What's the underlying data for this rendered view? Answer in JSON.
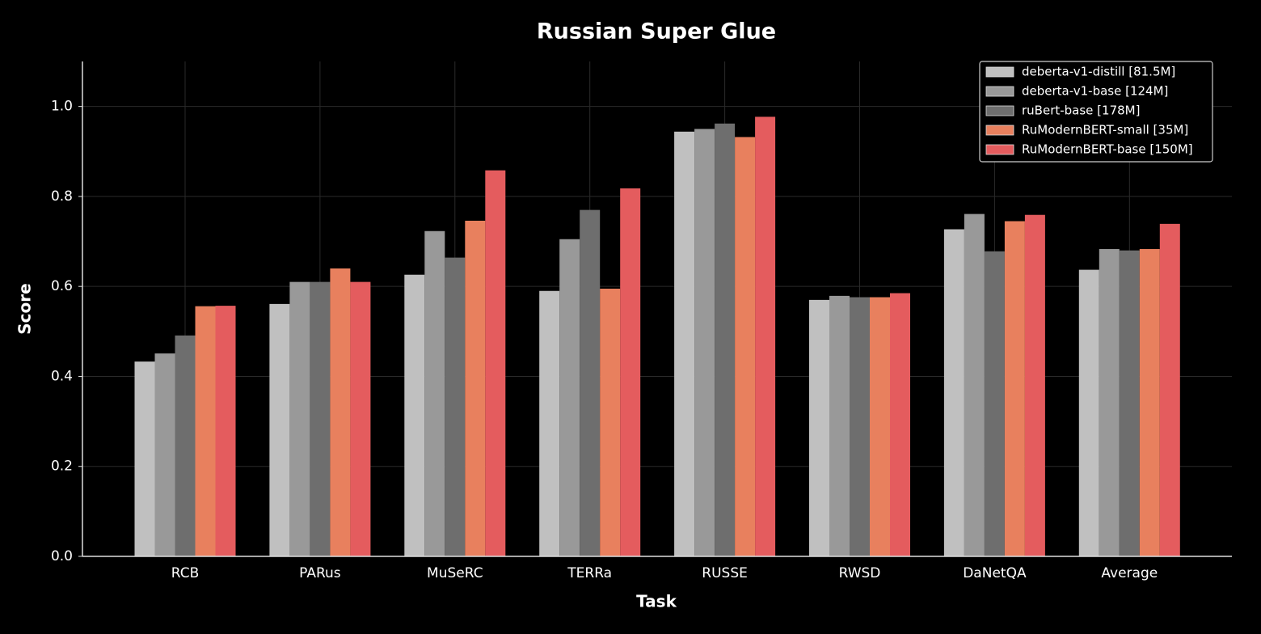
{
  "chart_data": {
    "type": "bar",
    "title": "Russian Super Glue",
    "x_label": "Task",
    "y_label": "Score",
    "categories": [
      "RCB",
      "PARus",
      "MuSeRC",
      "TERRa",
      "RUSSE",
      "RWSD",
      "DaNetQA",
      "Average"
    ],
    "series": [
      {
        "name": "deberta-v1-distill [81.5M]",
        "color": "#c0c0c0",
        "values": [
          0.433,
          0.561,
          0.626,
          0.59,
          0.944,
          0.57,
          0.727,
          0.637
        ]
      },
      {
        "name": "deberta-v1-base [124M]",
        "color": "#999999",
        "values": [
          0.451,
          0.61,
          0.723,
          0.705,
          0.95,
          0.579,
          0.761,
          0.683
        ]
      },
      {
        "name": "ruBert-base [178M]",
        "color": "#6e6e6e",
        "values": [
          0.491,
          0.61,
          0.664,
          0.77,
          0.962,
          0.576,
          0.678,
          0.68
        ]
      },
      {
        "name": "RuModernBERT-small [35M]",
        "color": "#e8805e",
        "values": [
          0.556,
          0.64,
          0.746,
          0.595,
          0.932,
          0.576,
          0.745,
          0.683
        ]
      },
      {
        "name": "RuModernBERT-base [150M]",
        "color": "#e45c5e",
        "values": [
          0.557,
          0.61,
          0.858,
          0.818,
          0.977,
          0.585,
          0.759,
          0.739
        ]
      }
    ],
    "ylim": [
      0,
      1.1
    ],
    "yticks": [
      {
        "value": 0,
        "label": "0.0"
      },
      0.2,
      0.4,
      0.6,
      0.8,
      {
        "value": 1,
        "label": "1.0"
      }
    ],
    "grid": true,
    "legend": "upper right"
  }
}
